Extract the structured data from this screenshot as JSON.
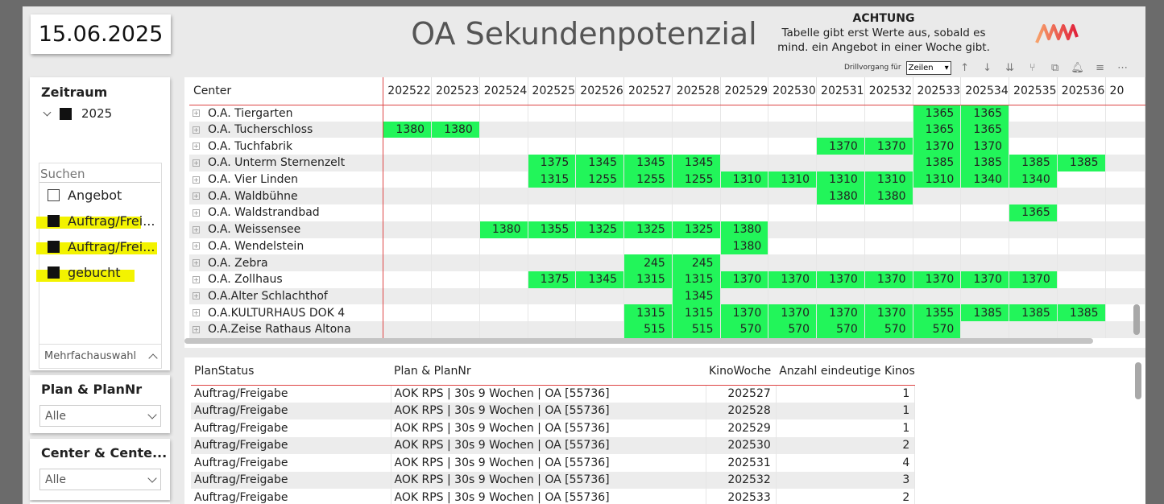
{
  "date": "15.06.2025",
  "title": "OA Sekundenpotenzial",
  "warning": {
    "heading": "ACHTUNG",
    "line1": "Tabelle gibt erst Werte aus, sobald es",
    "line2": "mind. ein Angebot in einer Woche gibt."
  },
  "toolbar": {
    "drill_label": "Drillvorgang für",
    "drill_value": "Zeilen",
    "icons": [
      "arrow-up-icon",
      "arrow-down-icon",
      "double-arrow-down-icon",
      "expand-hierarchy-icon",
      "copy-icon",
      "bell-icon",
      "filter-icon",
      "more-options-icon"
    ]
  },
  "zeitraum": {
    "title": "Zeitraum",
    "year": "2025",
    "search_placeholder": "Suchen",
    "options": [
      {
        "label": "Angebot",
        "checked": false,
        "highlighted": false
      },
      {
        "label": "Auftrag/Frei...",
        "checked": true,
        "highlighted": true
      },
      {
        "label": "Auftrag/Frei...",
        "checked": true,
        "highlighted": true
      },
      {
        "label": "gebucht",
        "checked": true,
        "highlighted": true
      }
    ],
    "mode": "Mehrfachauswahl"
  },
  "plan_slicer": {
    "title": "Plan & PlanNr",
    "value": "Alle"
  },
  "center_slicer": {
    "title": "Center & Cente...",
    "value": "Alle"
  },
  "colors": {
    "highlight_green": "#22f55a",
    "accent_red": "#dd4444",
    "marker_yellow": "#f3f300"
  },
  "matrix": {
    "header_center": "Center",
    "columns": [
      "202522",
      "202523",
      "202524",
      "202525",
      "202526",
      "202527",
      "202528",
      "202529",
      "202530",
      "202531",
      "202532",
      "202533",
      "202534",
      "202535",
      "202536",
      "20"
    ],
    "rows": [
      {
        "name": "O.A. Tiergarten",
        "cells": [
          "",
          "",
          "",
          "",
          "",
          "",
          "",
          "",
          "",
          "",
          "",
          "1365",
          "1365",
          "",
          "",
          ""
        ]
      },
      {
        "name": "O.A. Tucherschloss",
        "cells": [
          "1380",
          "1380",
          "",
          "",
          "",
          "",
          "",
          "",
          "",
          "",
          "",
          "1365",
          "1365",
          "",
          "",
          ""
        ]
      },
      {
        "name": "O.A. Tuchfabrik",
        "cells": [
          "",
          "",
          "",
          "",
          "",
          "",
          "",
          "",
          "",
          "1370",
          "1370",
          "1370",
          "1370",
          "",
          "",
          ""
        ]
      },
      {
        "name": "O.A. Unterm Sternenzelt",
        "cells": [
          "",
          "",
          "",
          "1375",
          "1345",
          "1345",
          "1345",
          "",
          "",
          "",
          "",
          "1385",
          "1385",
          "1385",
          "1385",
          ""
        ]
      },
      {
        "name": "O.A. Vier Linden",
        "cells": [
          "",
          "",
          "",
          "1315",
          "1255",
          "1255",
          "1255",
          "1310",
          "1310",
          "1310",
          "1310",
          "1310",
          "1340",
          "1340",
          "",
          ""
        ]
      },
      {
        "name": "O.A. Waldbühne",
        "cells": [
          "",
          "",
          "",
          "",
          "",
          "",
          "",
          "",
          "",
          "1380",
          "1380",
          "",
          "",
          "",
          "",
          ""
        ]
      },
      {
        "name": "O.A. Waldstrandbad",
        "cells": [
          "",
          "",
          "",
          "",
          "",
          "",
          "",
          "",
          "",
          "",
          "",
          "",
          "",
          "1365",
          "",
          ""
        ]
      },
      {
        "name": "O.A. Weissensee",
        "cells": [
          "",
          "",
          "1380",
          "1355",
          "1325",
          "1325",
          "1325",
          "1380",
          "",
          "",
          "",
          "",
          "",
          "",
          "",
          ""
        ]
      },
      {
        "name": "O.A. Wendelstein",
        "cells": [
          "",
          "",
          "",
          "",
          "",
          "",
          "",
          "1380",
          "",
          "",
          "",
          "",
          "",
          "",
          "",
          ""
        ]
      },
      {
        "name": "O.A. Zebra",
        "cells": [
          "",
          "",
          "",
          "",
          "",
          "245",
          "245",
          "",
          "",
          "",
          "",
          "",
          "",
          "",
          "",
          ""
        ]
      },
      {
        "name": "O.A. Zollhaus",
        "cells": [
          "",
          "",
          "",
          "1375",
          "1345",
          "1315",
          "1315",
          "1370",
          "1370",
          "1370",
          "1370",
          "1370",
          "1370",
          "1370",
          "",
          ""
        ]
      },
      {
        "name": "O.A.Alter Schlachthof",
        "cells": [
          "",
          "",
          "",
          "",
          "",
          "",
          "1345",
          "",
          "",
          "",
          "",
          "",
          "",
          "",
          "",
          ""
        ]
      },
      {
        "name": "O.A.KULTURHAUS DOK 4",
        "cells": [
          "",
          "",
          "",
          "",
          "",
          "1315",
          "1315",
          "1370",
          "1370",
          "1370",
          "1370",
          "1355",
          "1385",
          "1385",
          "1385",
          ""
        ]
      },
      {
        "name": "O.A.Zeise Rathaus Altona",
        "cells": [
          "",
          "",
          "",
          "",
          "",
          "515",
          "515",
          "570",
          "570",
          "570",
          "570",
          "570",
          "",
          "",
          "",
          ""
        ]
      }
    ]
  },
  "detail_table": {
    "headers": [
      "PlanStatus",
      "Plan & PlanNr",
      "KinoWoche",
      "Anzahl eindeutige Kinos"
    ],
    "rows": [
      [
        "Auftrag/Freigabe",
        "AOK RPS | 30s 9 Wochen | OA [55736]",
        "202527",
        "1"
      ],
      [
        "Auftrag/Freigabe",
        "AOK RPS | 30s 9 Wochen | OA [55736]",
        "202528",
        "1"
      ],
      [
        "Auftrag/Freigabe",
        "AOK RPS | 30s 9 Wochen | OA [55736]",
        "202529",
        "1"
      ],
      [
        "Auftrag/Freigabe",
        "AOK RPS | 30s 9 Wochen | OA [55736]",
        "202530",
        "2"
      ],
      [
        "Auftrag/Freigabe",
        "AOK RPS | 30s 9 Wochen | OA [55736]",
        "202531",
        "4"
      ],
      [
        "Auftrag/Freigabe",
        "AOK RPS | 30s 9 Wochen | OA [55736]",
        "202532",
        "3"
      ],
      [
        "Auftrag/Freigabe",
        "AOK RPS | 30s 9 Wochen | OA [55736]",
        "202533",
        "2"
      ]
    ]
  }
}
